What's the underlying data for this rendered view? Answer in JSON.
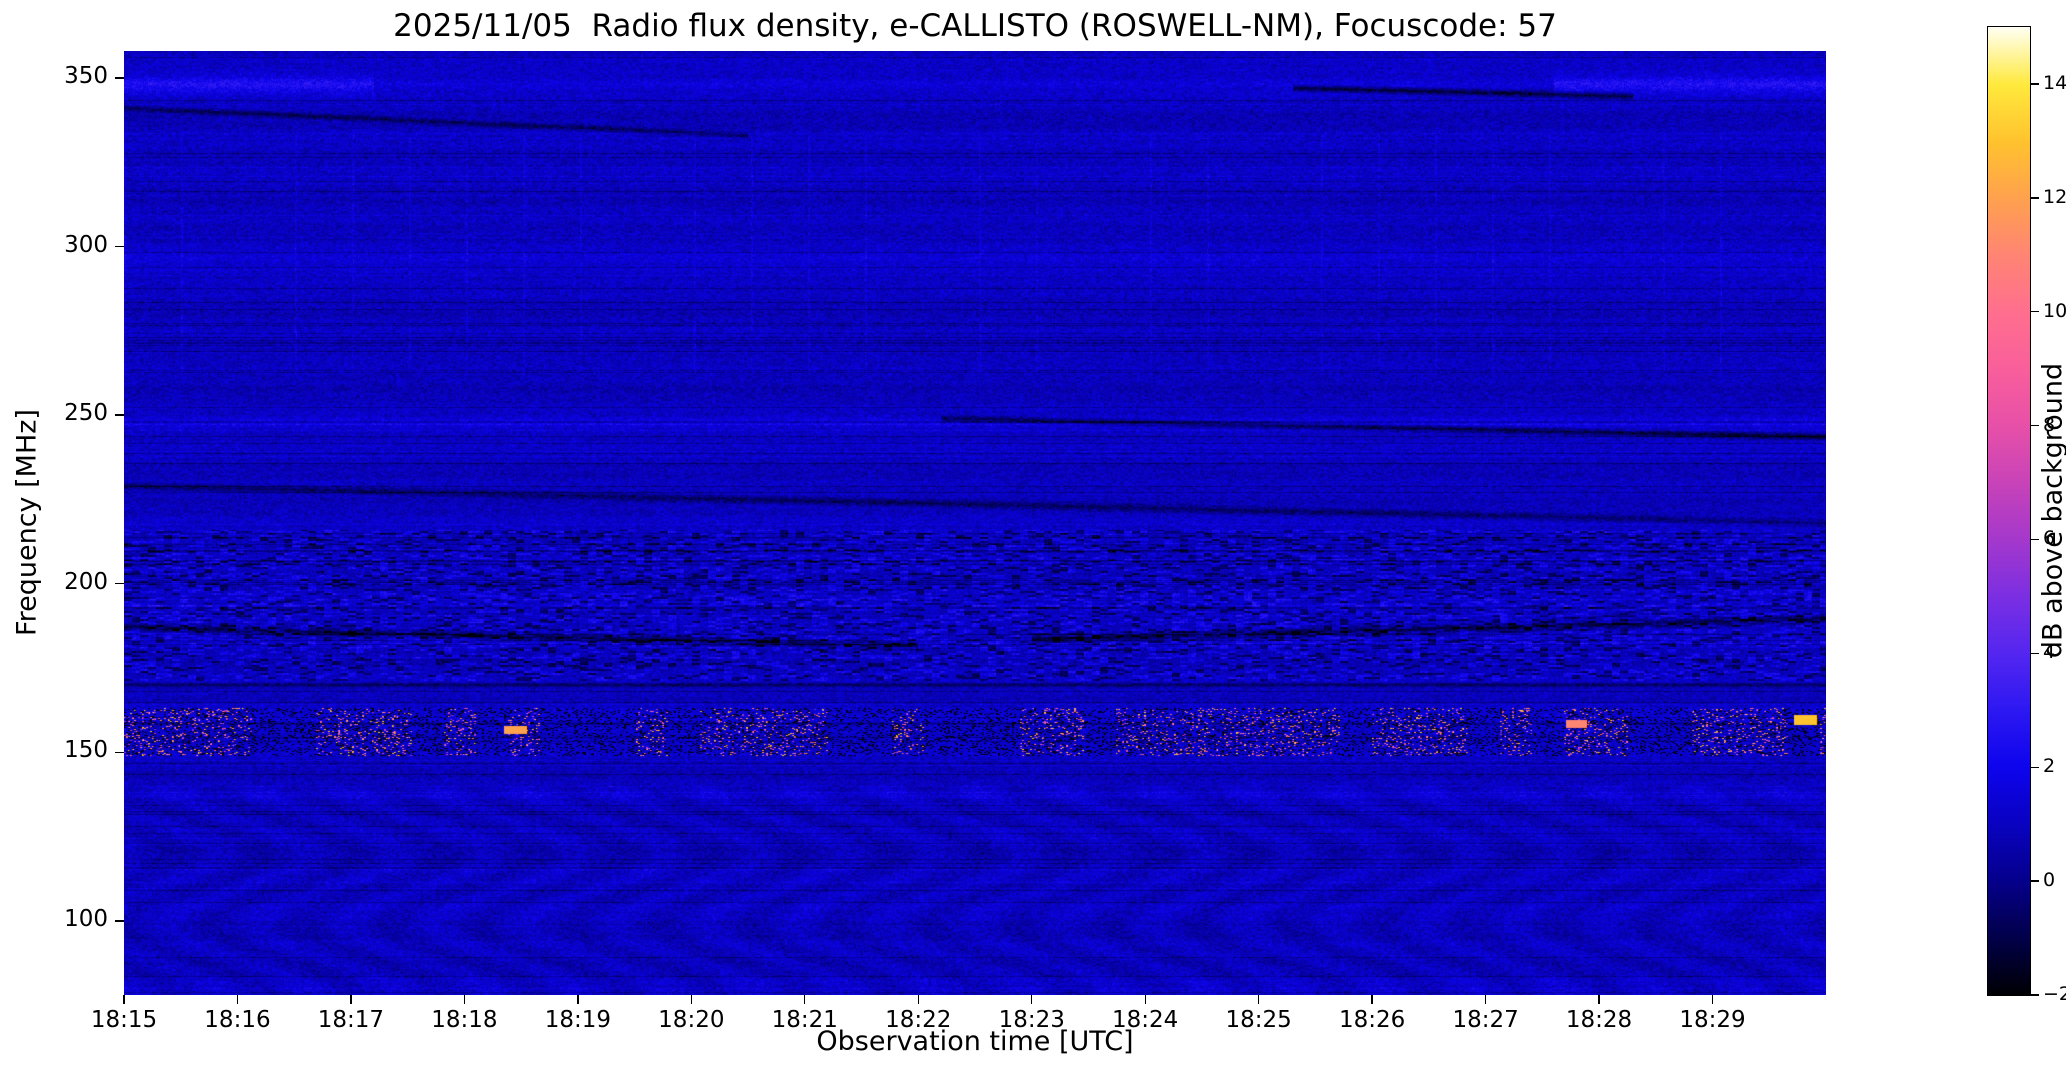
{
  "chart_data": {
    "type": "heatmap",
    "title": "2025/11/05  Radio flux density, e-CALLISTO (ROSWELL-NM), Focuscode: 57",
    "xlabel": "Observation time [UTC]",
    "ylabel": "Frequency [MHz]",
    "meta": {
      "date": "2025/11/05",
      "instrument": "e-CALLISTO",
      "station": "ROSWELL-NM",
      "focuscode": "57"
    },
    "x_tick_labels": [
      "18:15",
      "18:16",
      "18:17",
      "18:18",
      "18:19",
      "18:20",
      "18:21",
      "18:22",
      "18:23",
      "18:24",
      "18:25",
      "18:26",
      "18:27",
      "18:28",
      "18:29"
    ],
    "x_range": [
      "18:15",
      "18:30"
    ],
    "duration_min": 15,
    "y_ticks": [
      100,
      150,
      200,
      250,
      300,
      350
    ],
    "y_range_mhz": [
      78,
      358
    ],
    "grid": false,
    "background_db": 1.0,
    "colorbar": {
      "label": "dB above background",
      "ticks": [
        -2,
        0,
        2,
        4,
        6,
        8,
        10,
        12,
        14
      ],
      "vmin": -2,
      "vmax": 15,
      "colormap": "gnuplot2",
      "stops": [
        [
          0,
          "#000003"
        ],
        [
          0.06,
          "#02004a"
        ],
        [
          0.118,
          "#05008c"
        ],
        [
          0.176,
          "#0902c0"
        ],
        [
          0.235,
          "#0d04ed"
        ],
        [
          0.294,
          "#2d18f2"
        ],
        [
          0.353,
          "#5426f0"
        ],
        [
          0.412,
          "#7c2fe2"
        ],
        [
          0.47,
          "#a438cc"
        ],
        [
          0.53,
          "#c943b8"
        ],
        [
          0.588,
          "#e750a8"
        ],
        [
          0.647,
          "#f95f9b"
        ],
        [
          0.706,
          "#ff6f8e"
        ],
        [
          0.765,
          "#ff8573"
        ],
        [
          0.824,
          "#ffa24e"
        ],
        [
          0.882,
          "#ffc32e"
        ],
        [
          0.94,
          "#ffe93c"
        ],
        [
          1,
          "#fffff4"
        ]
      ]
    },
    "features": [
      {
        "name": "rfi-speckle-155MHz",
        "kind": "speckle",
        "f": [
          149,
          163
        ],
        "hi": 0.9,
        "lo": 0.2,
        "db": [
          4,
          14
        ]
      },
      {
        "name": "vertical-dash-texture-200MHz",
        "kind": "texture",
        "f": [
          171,
          216
        ]
      },
      {
        "name": "dark-line-170MHz",
        "kind": "streak",
        "t": [
          0,
          15
        ],
        "f": [
          170,
          170
        ],
        "w": 0.9,
        "db": -1.8
      },
      {
        "name": "dark-line-158MHz",
        "kind": "streak",
        "t": [
          0,
          15
        ],
        "f": [
          158.5,
          158.5
        ],
        "w": 0.5,
        "db": -1.5
      },
      {
        "name": "dark-drift-185MHz-left",
        "kind": "streak",
        "t": [
          0,
          7
        ],
        "f": [
          187,
          181.5
        ],
        "w": 1.6,
        "db": -2.2
      },
      {
        "name": "dark-drift-188MHz-right",
        "kind": "streak",
        "t": [
          8,
          15
        ],
        "f": [
          183.5,
          189.5
        ],
        "w": 1.8,
        "db": -2.2
      },
      {
        "name": "dark-diagonal-225MHz",
        "kind": "streak",
        "t": [
          0,
          15
        ],
        "f": [
          229,
          218
        ],
        "w": 1.6,
        "db": -1.6
      },
      {
        "name": "dark-streak-245MHz",
        "kind": "streak",
        "t": [
          7.2,
          15
        ],
        "f": [
          249,
          243.5
        ],
        "w": 1.4,
        "db": -2.4
      },
      {
        "name": "dark-streak-335MHz-left",
        "kind": "streak",
        "t": [
          0,
          5.5
        ],
        "f": [
          341,
          333
        ],
        "w": 1.3,
        "db": -1.7
      },
      {
        "name": "dark-streak-345MHz-right",
        "kind": "streak",
        "t": [
          10.3,
          13.3
        ],
        "f": [
          347,
          344.5
        ],
        "w": 1.4,
        "db": -2.6
      },
      {
        "name": "bright-band-348MHz",
        "kind": "band",
        "center": 348,
        "sigma": 2.6,
        "db": 1.1,
        "ends": [
          2.2,
          12.6
        ]
      },
      {
        "name": "bright-band-247MHz",
        "kind": "band",
        "center": 247.5,
        "sigma": 1.8,
        "db": 0.8
      },
      {
        "name": "bright-band-294MHz",
        "kind": "band",
        "center": 294,
        "sigma": 5,
        "db": 0.35
      },
      {
        "name": "periodic-vlines-300MHz",
        "kind": "vlines",
        "f": [
          262,
          333
        ],
        "period": 57
      },
      {
        "name": "wave-texture-low-freq",
        "kind": "wave",
        "f": [
          78,
          140
        ],
        "amp": 0.3
      },
      {
        "name": "hot-spot-1819",
        "kind": "spot",
        "t": 3.45,
        "f": 156.5,
        "dt": 0.1,
        "df": 1.2,
        "db": 12
      },
      {
        "name": "hot-spot-1827",
        "kind": "spot",
        "t": 12.8,
        "f": 158.5,
        "dt": 0.09,
        "df": 1.2,
        "db": 11
      },
      {
        "name": "hot-spot-right-edge",
        "kind": "spot",
        "t": 14.82,
        "f": 159.5,
        "dt": 0.1,
        "df": 1.5,
        "db": 13
      }
    ]
  }
}
